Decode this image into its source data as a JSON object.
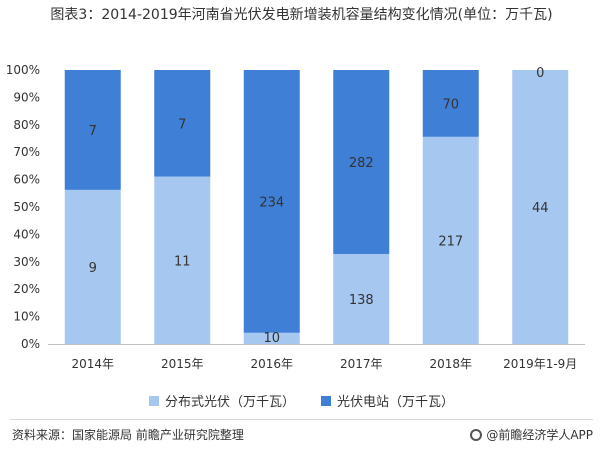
{
  "title": "图表3：2014-2019年河南省光伏发电新增装机容量结构变化情况(单位：万千瓦)",
  "chart_data": {
    "type": "bar",
    "stacked": true,
    "normalized": true,
    "categories": [
      "2014年",
      "2015年",
      "2016年",
      "2017年",
      "2018年",
      "2019年1-9月"
    ],
    "series": [
      {
        "name": "分布式光伏（万千瓦）",
        "values": [
          9,
          11,
          10,
          138,
          217,
          44
        ],
        "color": "#a6c8f0"
      },
      {
        "name": "光伏电站（万千瓦）",
        "values": [
          7,
          7,
          234,
          282,
          70,
          0
        ],
        "color": "#3f7fd6"
      }
    ],
    "y_ticks": [
      "0%",
      "10%",
      "20%",
      "30%",
      "40%",
      "50%",
      "60%",
      "70%",
      "80%",
      "90%",
      "100%"
    ],
    "ylim": [
      0,
      100
    ],
    "legend_position": "bottom",
    "grid": false
  },
  "footer": {
    "source": "资料来源：国家能源局 前瞻产业研究院整理",
    "brand": "@前瞻经济学人APP",
    "brand_icon": "qianzhan-logo-icon"
  }
}
